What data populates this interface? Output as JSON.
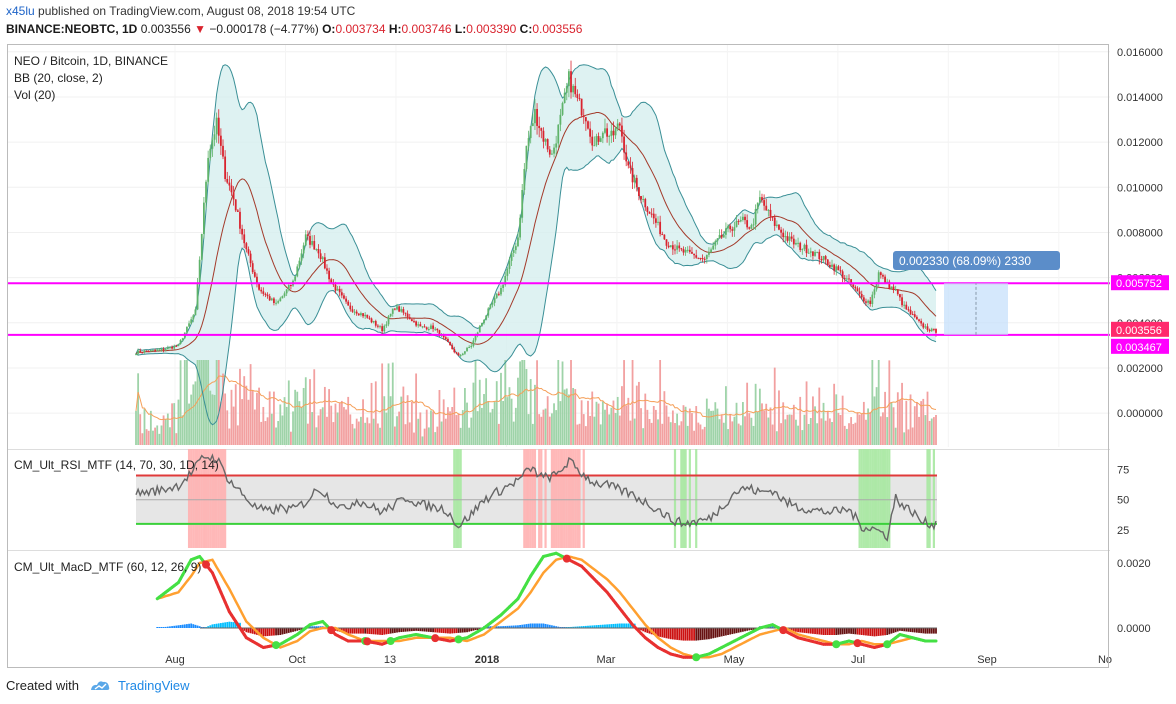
{
  "header": {
    "username": "x45lu",
    "published_text": "published on TradingView.com, August 08, 2018 19:54 UTC",
    "symbol": "BINANCE:NEOBTC, 1D",
    "last": "0.003556",
    "change": "−0.000178 (−4.77%)",
    "o_label": "O:",
    "o_value": "0.003734",
    "h_label": "H:",
    "h_value": "0.003746",
    "l_label": "L:",
    "l_value": "0.003390",
    "c_label": "C:",
    "c_value": "0.003556"
  },
  "legend": {
    "title": "NEO / Bitcoin, 1D, BINANCE",
    "bb": "BB (20, close, 2)",
    "vol": "Vol (20)",
    "rsi_title": "CM_Ult_RSI_MTF (14, 70, 30, 1D, 14)",
    "macd_title": "CM_Ult_MacD_MTF (60, 12, 26, 9)"
  },
  "measure_label": "0.002330 (68.09%) 2330",
  "footer": {
    "created": "Created with",
    "brand": "TradingView"
  },
  "colors": {
    "up": "#5fb36a",
    "down": "#d9232e",
    "magenta": "#ff00ff",
    "bb_band": "#3a8f96",
    "bb_fill": "#d6efef",
    "bb_basis": "#a33a2a",
    "vol_up": "#9ed3a8",
    "vol_down": "#f2a0a0",
    "vol_ma": "#f5a05a",
    "rsi_line": "#666666",
    "rsi_ob": "#e03a3a",
    "rsi_os": "#3ad13a",
    "macd_green": "#44e044",
    "macd_red": "#e83030",
    "macd_orange": "#ffa030",
    "accent_blue": "#1e64c8"
  },
  "chart_data": [
    {
      "type": "candlestick",
      "symbol": "NEO / Bitcoin, 1D, BINANCE",
      "x_ticks": [
        "Aug",
        "Oct",
        "13",
        "2018",
        "Mar",
        "May",
        "Jul",
        "Sep",
        "No"
      ],
      "y_ticks": [
        "0.016000",
        "0.014000",
        "0.012000",
        "0.010000",
        "0.008000",
        "0.006000",
        "0.004000",
        "0.002000",
        "0.000000"
      ],
      "ylim": [
        -0.0015,
        0.0163
      ],
      "price_labels": [
        "0.005752",
        "0.003556",
        "0.003467"
      ],
      "horizontal_lines": [
        0.005752,
        0.003467
      ],
      "key_points": [
        {
          "t": 0,
          "close": 0.0027
        },
        {
          "t": 12,
          "close": 0.0028
        },
        {
          "t": 20,
          "close": 0.003
        },
        {
          "t": 28,
          "close": 0.0045
        },
        {
          "t": 34,
          "close": 0.0115
        },
        {
          "t": 38,
          "close": 0.0128
        },
        {
          "t": 42,
          "close": 0.0106
        },
        {
          "t": 46,
          "close": 0.0095
        },
        {
          "t": 52,
          "close": 0.0072
        },
        {
          "t": 58,
          "close": 0.0055
        },
        {
          "t": 66,
          "close": 0.0048
        },
        {
          "t": 74,
          "close": 0.0058
        },
        {
          "t": 80,
          "close": 0.0078
        },
        {
          "t": 86,
          "close": 0.0072
        },
        {
          "t": 92,
          "close": 0.0058
        },
        {
          "t": 100,
          "close": 0.0047
        },
        {
          "t": 108,
          "close": 0.0043
        },
        {
          "t": 116,
          "close": 0.0037
        },
        {
          "t": 122,
          "close": 0.0047
        },
        {
          "t": 128,
          "close": 0.0043
        },
        {
          "t": 134,
          "close": 0.0038
        },
        {
          "t": 140,
          "close": 0.0038
        },
        {
          "t": 146,
          "close": 0.0032
        },
        {
          "t": 152,
          "close": 0.0025
        },
        {
          "t": 158,
          "close": 0.003
        },
        {
          "t": 164,
          "close": 0.0042
        },
        {
          "t": 172,
          "close": 0.0055
        },
        {
          "t": 180,
          "close": 0.0078
        },
        {
          "t": 184,
          "close": 0.0118
        },
        {
          "t": 188,
          "close": 0.0133
        },
        {
          "t": 192,
          "close": 0.0122
        },
        {
          "t": 196,
          "close": 0.0114
        },
        {
          "t": 200,
          "close": 0.013
        },
        {
          "t": 204,
          "close": 0.0148
        },
        {
          "t": 208,
          "close": 0.0138
        },
        {
          "t": 212,
          "close": 0.0132
        },
        {
          "t": 216,
          "close": 0.0118
        },
        {
          "t": 220,
          "close": 0.0126
        },
        {
          "t": 224,
          "close": 0.0122
        },
        {
          "t": 228,
          "close": 0.0128
        },
        {
          "t": 232,
          "close": 0.0108
        },
        {
          "t": 238,
          "close": 0.0096
        },
        {
          "t": 244,
          "close": 0.0086
        },
        {
          "t": 250,
          "close": 0.0076
        },
        {
          "t": 256,
          "close": 0.0072
        },
        {
          "t": 262,
          "close": 0.007
        },
        {
          "t": 268,
          "close": 0.0068
        },
        {
          "t": 274,
          "close": 0.0076
        },
        {
          "t": 280,
          "close": 0.0082
        },
        {
          "t": 286,
          "close": 0.0085
        },
        {
          "t": 290,
          "close": 0.0082
        },
        {
          "t": 294,
          "close": 0.0095
        },
        {
          "t": 300,
          "close": 0.0085
        },
        {
          "t": 306,
          "close": 0.0078
        },
        {
          "t": 312,
          "close": 0.0074
        },
        {
          "t": 318,
          "close": 0.0072
        },
        {
          "t": 324,
          "close": 0.0068
        },
        {
          "t": 330,
          "close": 0.0064
        },
        {
          "t": 336,
          "close": 0.0058
        },
        {
          "t": 342,
          "close": 0.0051
        },
        {
          "t": 346,
          "close": 0.0049
        },
        {
          "t": 350,
          "close": 0.0062
        },
        {
          "t": 354,
          "close": 0.0057
        },
        {
          "t": 358,
          "close": 0.0054
        },
        {
          "t": 362,
          "close": 0.0047
        },
        {
          "t": 366,
          "close": 0.0043
        },
        {
          "t": 370,
          "close": 0.0039
        },
        {
          "t": 374,
          "close": 0.0037
        },
        {
          "t": 377,
          "close": 0.00356
        }
      ]
    },
    {
      "type": "line",
      "name": "CM_Ult_RSI_MTF",
      "y_ticks": [
        "75",
        "50",
        "25"
      ],
      "ylim": [
        10,
        92
      ],
      "overbought": 70,
      "oversold": 30,
      "key_points": [
        {
          "t": 0,
          "v": 55
        },
        {
          "t": 12,
          "v": 58
        },
        {
          "t": 20,
          "v": 62
        },
        {
          "t": 26,
          "v": 72
        },
        {
          "t": 32,
          "v": 86
        },
        {
          "t": 38,
          "v": 84
        },
        {
          "t": 44,
          "v": 66
        },
        {
          "t": 50,
          "v": 55
        },
        {
          "t": 56,
          "v": 44
        },
        {
          "t": 62,
          "v": 40
        },
        {
          "t": 68,
          "v": 43
        },
        {
          "t": 74,
          "v": 42
        },
        {
          "t": 80,
          "v": 48
        },
        {
          "t": 86,
          "v": 60
        },
        {
          "t": 92,
          "v": 50
        },
        {
          "t": 98,
          "v": 42
        },
        {
          "t": 104,
          "v": 50
        },
        {
          "t": 110,
          "v": 45
        },
        {
          "t": 116,
          "v": 40
        },
        {
          "t": 122,
          "v": 46
        },
        {
          "t": 128,
          "v": 52
        },
        {
          "t": 134,
          "v": 46
        },
        {
          "t": 140,
          "v": 44
        },
        {
          "t": 146,
          "v": 42
        },
        {
          "t": 152,
          "v": 28
        },
        {
          "t": 158,
          "v": 38
        },
        {
          "t": 164,
          "v": 50
        },
        {
          "t": 172,
          "v": 58
        },
        {
          "t": 180,
          "v": 66
        },
        {
          "t": 186,
          "v": 76
        },
        {
          "t": 192,
          "v": 68
        },
        {
          "t": 198,
          "v": 70
        },
        {
          "t": 204,
          "v": 82
        },
        {
          "t": 210,
          "v": 72
        },
        {
          "t": 216,
          "v": 64
        },
        {
          "t": 222,
          "v": 62
        },
        {
          "t": 228,
          "v": 58
        },
        {
          "t": 234,
          "v": 54
        },
        {
          "t": 240,
          "v": 48
        },
        {
          "t": 246,
          "v": 42
        },
        {
          "t": 252,
          "v": 34
        },
        {
          "t": 258,
          "v": 30
        },
        {
          "t": 264,
          "v": 32
        },
        {
          "t": 270,
          "v": 34
        },
        {
          "t": 276,
          "v": 44
        },
        {
          "t": 282,
          "v": 56
        },
        {
          "t": 288,
          "v": 60
        },
        {
          "t": 294,
          "v": 56
        },
        {
          "t": 300,
          "v": 58
        },
        {
          "t": 306,
          "v": 48
        },
        {
          "t": 312,
          "v": 44
        },
        {
          "t": 318,
          "v": 42
        },
        {
          "t": 324,
          "v": 40
        },
        {
          "t": 330,
          "v": 40
        },
        {
          "t": 336,
          "v": 42
        },
        {
          "t": 342,
          "v": 28
        },
        {
          "t": 348,
          "v": 26
        },
        {
          "t": 354,
          "v": 20
        },
        {
          "t": 358,
          "v": 52
        },
        {
          "t": 362,
          "v": 44
        },
        {
          "t": 366,
          "v": 40
        },
        {
          "t": 370,
          "v": 32
        },
        {
          "t": 374,
          "v": 30
        },
        {
          "t": 377,
          "v": 30
        }
      ]
    },
    {
      "type": "line",
      "name": "CM_Ult_MacD_MTF",
      "y_ticks": [
        "0.0020",
        "0.0000"
      ],
      "ylim": [
        -0.0012,
        0.0024
      ],
      "key_points": [
        {
          "t": 10,
          "macd": 0.0009,
          "signal": 0.0009
        },
        {
          "t": 20,
          "macd": 0.0014,
          "signal": 0.0011
        },
        {
          "t": 26,
          "macd": 0.0021,
          "signal": 0.0016
        },
        {
          "t": 30,
          "macd": 0.0022,
          "signal": 0.002
        },
        {
          "t": 36,
          "macd": 0.0017,
          "signal": 0.0021
        },
        {
          "t": 44,
          "macd": 0.0005,
          "signal": 0.0012
        },
        {
          "t": 52,
          "macd": -0.0003,
          "signal": 0.0002
        },
        {
          "t": 60,
          "macd": -0.0006,
          "signal": -0.0003
        },
        {
          "t": 68,
          "macd": -0.0005,
          "signal": -0.0006
        },
        {
          "t": 76,
          "macd": -0.0002,
          "signal": -0.0004
        },
        {
          "t": 82,
          "macd": 0.0001,
          "signal": -0.0001
        },
        {
          "t": 88,
          "macd": 0.0002,
          "signal": 0.0
        },
        {
          "t": 94,
          "macd": -0.0002,
          "signal": 0.0
        },
        {
          "t": 100,
          "macd": -0.0004,
          "signal": -0.0002
        },
        {
          "t": 108,
          "macd": -0.0004,
          "signal": -0.0004
        },
        {
          "t": 116,
          "macd": -0.0005,
          "signal": -0.0004
        },
        {
          "t": 124,
          "macd": -0.0003,
          "signal": -0.0004
        },
        {
          "t": 132,
          "macd": -0.0002,
          "signal": -0.0003
        },
        {
          "t": 140,
          "macd": -0.0003,
          "signal": -0.0003
        },
        {
          "t": 148,
          "macd": -0.0004,
          "signal": -0.0003
        },
        {
          "t": 156,
          "macd": -0.0003,
          "signal": -0.0004
        },
        {
          "t": 164,
          "macd": 0.0,
          "signal": -0.0002
        },
        {
          "t": 172,
          "macd": 0.0004,
          "signal": 0.0002
        },
        {
          "t": 180,
          "macd": 0.0009,
          "signal": 0.0006
        },
        {
          "t": 186,
          "macd": 0.0016,
          "signal": 0.0011
        },
        {
          "t": 192,
          "macd": 0.0022,
          "signal": 0.0017
        },
        {
          "t": 198,
          "macd": 0.0023,
          "signal": 0.0021
        },
        {
          "t": 204,
          "macd": 0.0021,
          "signal": 0.0022
        },
        {
          "t": 210,
          "macd": 0.0019,
          "signal": 0.0021
        },
        {
          "t": 216,
          "macd": 0.0015,
          "signal": 0.0018
        },
        {
          "t": 222,
          "macd": 0.0011,
          "signal": 0.0015
        },
        {
          "t": 228,
          "macd": 0.0006,
          "signal": 0.0011
        },
        {
          "t": 234,
          "macd": 0.0001,
          "signal": 0.0006
        },
        {
          "t": 240,
          "macd": -0.0003,
          "signal": 0.0001
        },
        {
          "t": 246,
          "macd": -0.0006,
          "signal": -0.0003
        },
        {
          "t": 252,
          "macd": -0.0008,
          "signal": -0.0006
        },
        {
          "t": 258,
          "macd": -0.0009,
          "signal": -0.0008
        },
        {
          "t": 264,
          "macd": -0.0009,
          "signal": -0.0009
        },
        {
          "t": 270,
          "macd": -0.0008,
          "signal": -0.0009
        },
        {
          "t": 276,
          "macd": -0.0006,
          "signal": -0.0008
        },
        {
          "t": 282,
          "macd": -0.0004,
          "signal": -0.0006
        },
        {
          "t": 288,
          "macd": -0.0002,
          "signal": -0.0004
        },
        {
          "t": 294,
          "macd": 0.0,
          "signal": -0.0002
        },
        {
          "t": 300,
          "macd": 0.0001,
          "signal": -0.0001
        },
        {
          "t": 306,
          "macd": -0.0001,
          "signal": 0.0
        },
        {
          "t": 312,
          "macd": -0.0003,
          "signal": -0.0002
        },
        {
          "t": 318,
          "macd": -0.0004,
          "signal": -0.0003
        },
        {
          "t": 324,
          "macd": -0.0005,
          "signal": -0.0004
        },
        {
          "t": 330,
          "macd": -0.0005,
          "signal": -0.0005
        },
        {
          "t": 336,
          "macd": -0.0004,
          "signal": -0.0005
        },
        {
          "t": 342,
          "macd": -0.0005,
          "signal": -0.0004
        },
        {
          "t": 348,
          "macd": -0.0006,
          "signal": -0.0005
        },
        {
          "t": 354,
          "macd": -0.0005,
          "signal": -0.0005
        },
        {
          "t": 360,
          "macd": -0.0002,
          "signal": -0.0004
        },
        {
          "t": 366,
          "macd": -0.0003,
          "signal": -0.0003
        },
        {
          "t": 372,
          "macd": -0.0004,
          "signal": -0.0004
        },
        {
          "t": 377,
          "macd": -0.0004,
          "signal": -0.0004
        }
      ]
    }
  ]
}
